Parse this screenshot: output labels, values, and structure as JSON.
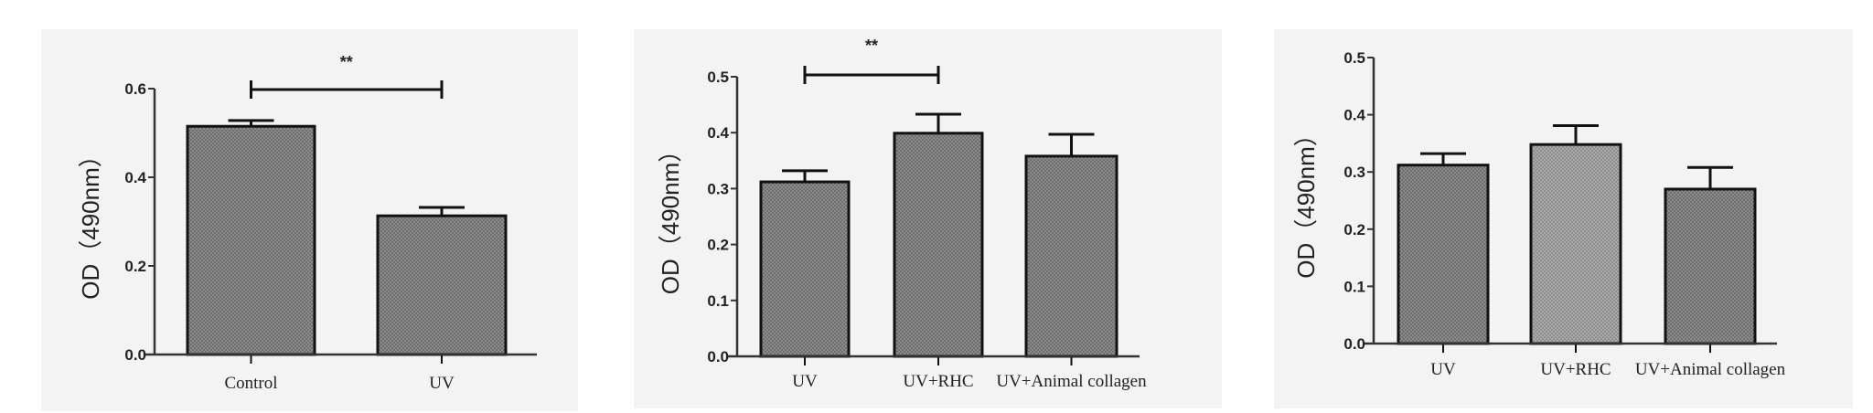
{
  "colors": {
    "background": "#f3f3f3",
    "bar_dark": "#808080",
    "bar_light": "#a2a2a2",
    "line": "#111111"
  },
  "chart_data": [
    {
      "type": "bar",
      "title": "",
      "xlabel": "",
      "ylabel": "OD（490nm）",
      "ylim": [
        0,
        0.6
      ],
      "yticks": [
        "0.0",
        "0.2",
        "0.4",
        "0.6"
      ],
      "categories": [
        "Control",
        "UV"
      ],
      "values": [
        0.515,
        0.313
      ],
      "errors": [
        0.013,
        0.019
      ],
      "significance": [
        {
          "from": "Control",
          "to": "UV",
          "label": "**"
        }
      ]
    },
    {
      "type": "bar",
      "title": "",
      "xlabel": "",
      "ylabel": "OD（490nm）",
      "ylim": [
        0,
        0.5
      ],
      "yticks": [
        "0.0",
        "0.1",
        "0.2",
        "0.3",
        "0.4",
        "0.5"
      ],
      "categories": [
        "UV",
        "UV+RHC",
        "UV+Animal collagen"
      ],
      "values": [
        0.312,
        0.399,
        0.358
      ],
      "errors": [
        0.02,
        0.034,
        0.039
      ],
      "significance": [
        {
          "from": "UV",
          "to": "UV+RHC",
          "label": "**"
        }
      ]
    },
    {
      "type": "bar",
      "title": "",
      "xlabel": "",
      "ylabel": "OD（490nm）",
      "ylim": [
        0,
        0.5
      ],
      "yticks": [
        "0.0",
        "0.1",
        "0.2",
        "0.3",
        "0.4",
        "0.5"
      ],
      "categories": [
        "UV",
        "UV+RHC",
        "UV+Animal collagen"
      ],
      "values": [
        0.312,
        0.348,
        0.27
      ],
      "errors": [
        0.02,
        0.033,
        0.038
      ],
      "significance": []
    }
  ]
}
